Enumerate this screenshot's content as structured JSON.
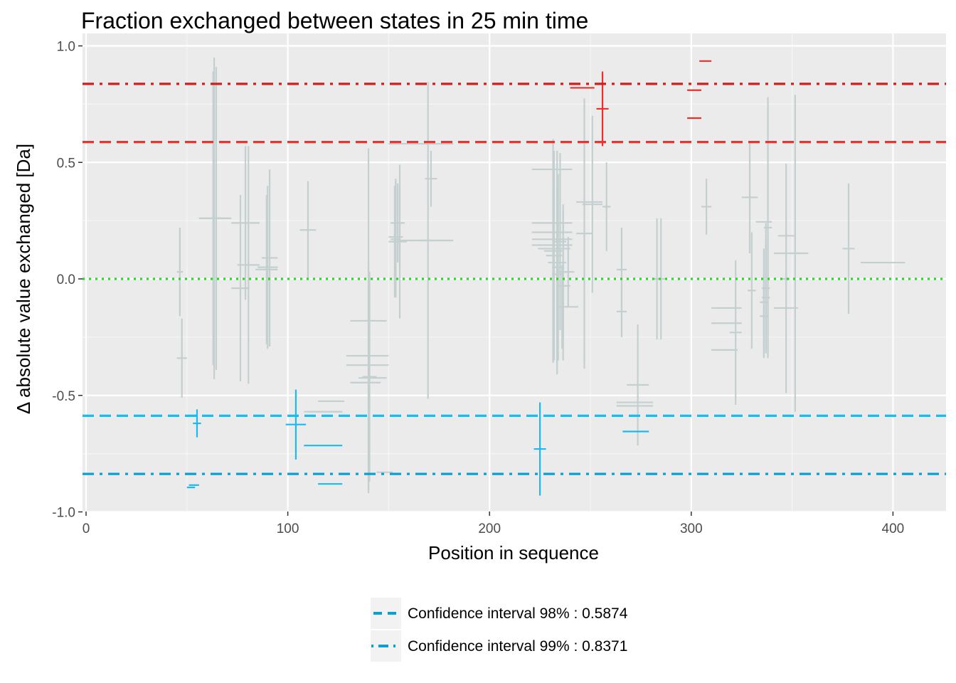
{
  "chart_data": {
    "type": "scatter",
    "title": "Fraction exchanged between states in 25 min time",
    "xlabel": "Position in sequence",
    "ylabel": "Δ absolute value exchanged [Da]",
    "xlim": [
      -2,
      425
    ],
    "ylim": [
      -1.0,
      1.0
    ],
    "x_ticks": [
      0,
      100,
      200,
      300,
      400
    ],
    "y_ticks": [
      -1.0,
      -0.5,
      0.0,
      0.5,
      1.0
    ],
    "y_tick_labels": [
      "-1.0",
      "-0.5",
      "0.0",
      "0.5",
      "1.0"
    ],
    "grid": true,
    "panel_background": "#ebebeb",
    "colors": {
      "insignificant": "#c4cfcf",
      "significant_positive": "#e8302c",
      "significant_negative": "#1ab9ee",
      "ci98_positive": "#ec3332",
      "ci99_positive": "#cc2020",
      "ci98_negative": "#19bcf0",
      "ci99_negative": "#0d9fd0",
      "zero_line": "#22dd22"
    },
    "reference_lines": [
      {
        "y": 0.8371,
        "style": "dashdot",
        "color": "#cc2020"
      },
      {
        "y": 0.5874,
        "style": "dashed",
        "color": "#ec3332"
      },
      {
        "y": 0.0,
        "style": "dotted",
        "color": "#22dd22"
      },
      {
        "y": -0.5874,
        "style": "dashed",
        "color": "#19bcf0"
      },
      {
        "y": -0.8371,
        "style": "dashdot",
        "color": "#0d9fd0"
      }
    ],
    "legend": {
      "placement": "bottom",
      "entries": [
        {
          "label": "Confidence interval 98% : 0.5874",
          "style": "dashed"
        },
        {
          "label": "Confidence interval 99% : 0.8371",
          "style": "dotdash"
        }
      ]
    },
    "series": [
      {
        "group": "insignificant",
        "points": [
          {
            "x1": 45,
            "x2": 48,
            "y": 0.03,
            "err": 0.19
          },
          {
            "x1": 45,
            "x2": 50,
            "y": -0.34,
            "err": 0.17
          },
          {
            "x1": 56,
            "x2": 70,
            "y": 0.26,
            "err": 0.63
          },
          {
            "x1": 56,
            "x2": 71,
            "y": 0.26,
            "err": 0.69
          },
          {
            "x1": 57,
            "x2": 72,
            "y": 0.26,
            "err": 0.65
          },
          {
            "x1": 72,
            "x2": 86,
            "y": 0.24,
            "err": 0.33
          },
          {
            "x1": 72,
            "x2": 81,
            "y": -0.04,
            "err": 0.4
          },
          {
            "x1": 75,
            "x2": 86,
            "y": 0.06,
            "err": 0.51
          },
          {
            "x1": 84,
            "x2": 95,
            "y": 0.04,
            "err": 0.32
          },
          {
            "x1": 85,
            "x2": 95,
            "y": 0.05,
            "err": 0.35
          },
          {
            "x1": 87,
            "x2": 95,
            "y": 0.09,
            "err": 0.38
          },
          {
            "x1": 106,
            "x2": 114,
            "y": 0.21,
            "err": 0.21
          },
          {
            "x1": 108,
            "x2": 127,
            "y": -0.57,
            "err": 0.0
          },
          {
            "x1": 111,
            "x2": 127,
            "y": -0.57,
            "err": 0.0
          },
          {
            "x1": 115,
            "x2": 128,
            "y": -0.525,
            "err": 0.0
          },
          {
            "x1": 131,
            "x2": 149,
            "y": -0.18,
            "err": 0.0
          },
          {
            "x1": 129,
            "x2": 150,
            "y": -0.33,
            "err": 0.0
          },
          {
            "x1": 129,
            "x2": 150,
            "y": -0.37,
            "err": 0.0
          },
          {
            "x1": 131,
            "x2": 146,
            "y": -0.445,
            "err": 0.0
          },
          {
            "x1": 135,
            "x2": 149,
            "y": -0.425,
            "err": 0.0
          },
          {
            "x1": 137,
            "x2": 143,
            "y": -0.18,
            "err": 0.74
          },
          {
            "x1": 137,
            "x2": 143,
            "y": -0.42,
            "err": 0.49
          },
          {
            "x1": 137,
            "x2": 144,
            "y": -0.42,
            "err": 0.45
          },
          {
            "x1": 144,
            "x2": 152,
            "y": -0.83,
            "err": 0.0
          },
          {
            "x1": 150,
            "x2": 157,
            "y": 0.18,
            "err": 0.25
          },
          {
            "x1": 150,
            "x2": 156,
            "y": 0.16,
            "err": 0.24
          },
          {
            "x1": 151,
            "x2": 158,
            "y": 0.24,
            "err": 0.17
          },
          {
            "x1": 151,
            "x2": 156,
            "y": 0.17,
            "err": 0.25
          },
          {
            "x1": 152,
            "x2": 159,
            "y": 0.16,
            "err": 0.33
          },
          {
            "x1": 150,
            "x2": 175,
            "y": 0.58,
            "err": 0.0
          },
          {
            "x1": 155,
            "x2": 182,
            "y": 0.165,
            "err": 0.0
          },
          {
            "x1": 165,
            "x2": 174,
            "y": 0.165,
            "err": 0.68
          },
          {
            "x1": 168,
            "x2": 174,
            "y": 0.43,
            "err": 0.12
          },
          {
            "x1": 165,
            "x2": 182,
            "y": 0.58,
            "err": 0.0
          },
          {
            "x1": 221,
            "x2": 241,
            "y": 0.47,
            "err": 0.0
          },
          {
            "x1": 221,
            "x2": 241,
            "y": 0.24,
            "err": 0.0
          },
          {
            "x1": 221,
            "x2": 241,
            "y": 0.2,
            "err": 0.0
          },
          {
            "x1": 221,
            "x2": 241,
            "y": 0.17,
            "err": 0.0
          },
          {
            "x1": 221,
            "x2": 241,
            "y": 0.145,
            "err": 0.0
          },
          {
            "x1": 224,
            "x2": 240,
            "y": 0.13,
            "err": 0.0
          },
          {
            "x1": 227,
            "x2": 236,
            "y": 0.12,
            "err": 0.48
          },
          {
            "x1": 228,
            "x2": 236,
            "y": 0.1,
            "err": 0.45
          },
          {
            "x1": 229,
            "x2": 238,
            "y": 0.07,
            "err": 0.48
          },
          {
            "x1": 231,
            "x2": 237,
            "y": 0.05,
            "err": 0.4
          },
          {
            "x1": 231,
            "x2": 236,
            "y": 0.02,
            "err": 0.38
          },
          {
            "x1": 232,
            "x2": 238,
            "y": 0.16,
            "err": 0.38
          },
          {
            "x1": 233,
            "x2": 240,
            "y": -0.03,
            "err": 0.32
          },
          {
            "x1": 233,
            "x2": 240,
            "y": 0.03,
            "err": 0.29
          },
          {
            "x1": 233,
            "x2": 239,
            "y": -0.12,
            "err": 0.18
          },
          {
            "x1": 236,
            "x2": 242,
            "y": 0.03,
            "err": 0.15
          },
          {
            "x1": 238,
            "x2": 244,
            "y": -0.12,
            "err": 0.0
          },
          {
            "x1": 243,
            "x2": 256,
            "y": 0.33,
            "err": 0.0
          },
          {
            "x1": 243,
            "x2": 251,
            "y": 0.195,
            "err": 0.58
          },
          {
            "x1": 246,
            "x2": 256,
            "y": 0.32,
            "err": 0.38
          },
          {
            "x1": 256,
            "x2": 260,
            "y": 0.31,
            "err": 0.19
          },
          {
            "x1": 263,
            "x2": 268,
            "y": 0.04,
            "err": 0.18
          },
          {
            "x1": 263,
            "x2": 268,
            "y": -0.14,
            "err": 0.11
          },
          {
            "x1": 263,
            "x2": 281,
            "y": -0.53,
            "err": 0.0
          },
          {
            "x1": 263,
            "x2": 281,
            "y": -0.545,
            "err": 0.0
          },
          {
            "x1": 268,
            "x2": 279,
            "y": -0.455,
            "err": 0.26
          },
          {
            "x1": 281,
            "x2": 285,
            "y": 0.0,
            "err": 0.26
          },
          {
            "x1": 283,
            "x2": 287,
            "y": 0.0,
            "err": 0.26
          },
          {
            "x1": 305,
            "x2": 310,
            "y": 0.31,
            "err": 0.12
          },
          {
            "x1": 310,
            "x2": 325,
            "y": -0.125,
            "err": 0.0
          },
          {
            "x1": 310,
            "x2": 325,
            "y": -0.19,
            "err": 0.0
          },
          {
            "x1": 310,
            "x2": 323,
            "y": -0.305,
            "err": 0.0
          },
          {
            "x1": 319,
            "x2": 325,
            "y": -0.23,
            "err": 0.31
          },
          {
            "x1": 325,
            "x2": 333,
            "y": 0.35,
            "err": 0.24
          },
          {
            "x1": 328,
            "x2": 332,
            "y": -0.05,
            "err": 0.25
          },
          {
            "x1": 332,
            "x2": 340,
            "y": 0.245,
            "err": 0.0
          },
          {
            "x1": 334,
            "x2": 338,
            "y": -0.1,
            "err": 0.23
          },
          {
            "x1": 334,
            "x2": 338,
            "y": -0.16,
            "err": 0.18
          },
          {
            "x1": 335,
            "x2": 339,
            "y": -0.08,
            "err": 0.23
          },
          {
            "x1": 335,
            "x2": 339,
            "y": -0.04,
            "err": 0.28
          },
          {
            "x1": 336,
            "x2": 340,
            "y": 0.22,
            "err": 0.56
          },
          {
            "x1": 341,
            "x2": 353,
            "y": -0.125,
            "err": 0.0
          },
          {
            "x1": 343,
            "x2": 351,
            "y": 0.185,
            "err": 0.31
          },
          {
            "x1": 345,
            "x2": 349,
            "y": 0.0,
            "err": 0.49
          },
          {
            "x1": 341,
            "x2": 358,
            "y": 0.11,
            "err": 0.0
          },
          {
            "x1": 349,
            "x2": 354,
            "y": 0.11,
            "err": 0.68
          },
          {
            "x1": 375,
            "x2": 381,
            "y": 0.13,
            "err": 0.28
          },
          {
            "x1": 384,
            "x2": 406,
            "y": 0.07,
            "err": 0.0
          }
        ]
      },
      {
        "group": "significant_positive",
        "points": [
          {
            "x1": 240,
            "x2": 252,
            "y": 0.82,
            "err": 0.0
          },
          {
            "x1": 253,
            "x2": 259,
            "y": 0.73,
            "err": 0.16
          },
          {
            "x1": 298,
            "x2": 305,
            "y": 0.81,
            "err": 0.0
          },
          {
            "x1": 298,
            "x2": 305,
            "y": 0.69,
            "err": 0.0
          },
          {
            "x1": 304,
            "x2": 310,
            "y": 0.935,
            "err": 0.0
          }
        ]
      },
      {
        "group": "significant_negative",
        "points": [
          {
            "x1": 50,
            "x2": 54,
            "y": -0.895,
            "err": 0.0
          },
          {
            "x1": 51,
            "x2": 56,
            "y": -0.885,
            "err": 0.0
          },
          {
            "x1": 53,
            "x2": 57,
            "y": -0.62,
            "err": 0.06
          },
          {
            "x1": 99,
            "x2": 109,
            "y": -0.625,
            "err": 0.15
          },
          {
            "x1": 108,
            "x2": 127,
            "y": -0.715,
            "err": 0.0
          },
          {
            "x1": 115,
            "x2": 127,
            "y": -0.88,
            "err": 0.0
          },
          {
            "x1": 222,
            "x2": 228,
            "y": -0.73,
            "err": 0.2
          },
          {
            "x1": 266,
            "x2": 279,
            "y": -0.655,
            "err": 0.0
          }
        ]
      }
    ]
  }
}
